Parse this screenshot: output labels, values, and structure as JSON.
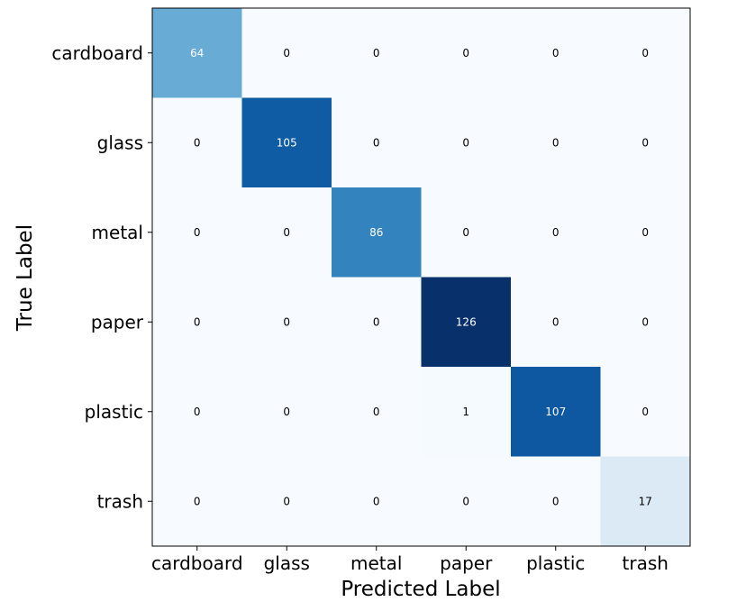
{
  "chart_data": {
    "type": "heatmap",
    "title": "",
    "xlabel": "Predicted Label",
    "ylabel": "True Label",
    "x_categories": [
      "cardboard",
      "glass",
      "metal",
      "paper",
      "plastic",
      "trash"
    ],
    "y_categories": [
      "cardboard",
      "glass",
      "metal",
      "paper",
      "plastic",
      "trash"
    ],
    "values": [
      [
        64,
        0,
        0,
        0,
        0,
        0
      ],
      [
        0,
        105,
        0,
        0,
        0,
        0
      ],
      [
        0,
        0,
        86,
        0,
        0,
        0
      ],
      [
        0,
        0,
        0,
        126,
        0,
        0
      ],
      [
        0,
        0,
        0,
        1,
        107,
        0
      ],
      [
        0,
        0,
        0,
        0,
        0,
        17
      ]
    ],
    "colormap": "Blues",
    "color_range": [
      0,
      126
    ],
    "colorbar": false,
    "grid": false
  }
}
